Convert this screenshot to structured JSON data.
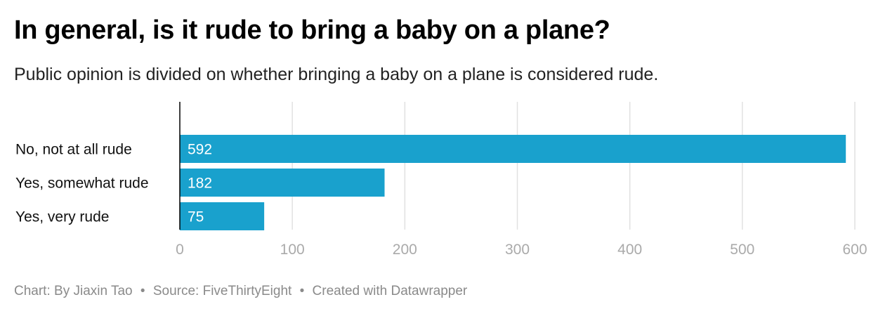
{
  "title": "In general, is it rude to bring a baby on a plane?",
  "subtitle": "Public opinion is divided on whether bringing a baby on a plane is considered rude.",
  "footer": {
    "chart_credit": "Chart: By Jiaxin Tao",
    "source": "Source: FiveThirtyEight",
    "tool": "Created with Datawrapper",
    "separator": "•"
  },
  "colors": {
    "bar": "#19a1cd",
    "bar_label": "#ffffff",
    "grid": "#e1e1e1",
    "axis": "#000000",
    "tick_label": "#aaaaaa",
    "category_label": "#111111"
  },
  "chart_data": {
    "type": "bar",
    "orientation": "horizontal",
    "categories": [
      "No, not at all rude",
      "Yes, somewhat rude",
      "Yes, very rude"
    ],
    "values": [
      592,
      182,
      75
    ],
    "xlim": [
      0,
      600
    ],
    "xticks": [
      0,
      100,
      200,
      300,
      400,
      500,
      600
    ],
    "grid": true,
    "legend": "none"
  }
}
